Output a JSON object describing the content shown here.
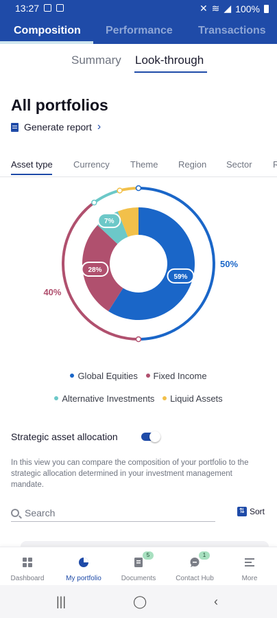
{
  "status_bar": {
    "time": "13:27",
    "battery": "100%"
  },
  "main_tabs": [
    {
      "label": "Composition",
      "active": true
    },
    {
      "label": "Performance",
      "active": false
    },
    {
      "label": "Transactions",
      "active": false
    }
  ],
  "sub_tabs": [
    {
      "label": "Summary",
      "active": false
    },
    {
      "label": "Look-through",
      "active": true
    }
  ],
  "page_title": "All portfolios",
  "generate_report": "Generate report",
  "filter_tabs": [
    {
      "label": "Asset type",
      "active": true
    },
    {
      "label": "Currency"
    },
    {
      "label": "Theme"
    },
    {
      "label": "Region"
    },
    {
      "label": "Sector"
    },
    {
      "label": "R"
    }
  ],
  "chart_data": {
    "type": "pie",
    "series": [
      {
        "name": "Global Equities",
        "value": 59,
        "label": "59%",
        "color": "#1a66c8"
      },
      {
        "name": "Fixed Income",
        "value": 28,
        "label": "28%",
        "color": "#b0506e"
      },
      {
        "name": "Alternative Investments",
        "value": 7,
        "label": "7%",
        "color": "#6cc8c8"
      },
      {
        "name": "Liquid Assets",
        "value": 6,
        "label": "",
        "color": "#f2c04a"
      }
    ],
    "outer_ring": [
      {
        "label": "50%",
        "value": 50,
        "color": "#1a66c8"
      },
      {
        "label": "40%",
        "value": 40,
        "color": "#b0506e"
      },
      {
        "label": "",
        "value": 6,
        "color": "#6cc8c8"
      },
      {
        "label": "",
        "value": 4,
        "color": "#f2c04a"
      }
    ]
  },
  "legend": [
    {
      "label": "Global Equities",
      "color": "#1a66c8"
    },
    {
      "label": "Fixed Income",
      "color": "#b0506e"
    },
    {
      "label": "Alternative Investments",
      "color": "#6cc8c8"
    },
    {
      "label": "Liquid Assets",
      "color": "#f2c04a"
    }
  ],
  "strategic": {
    "label": "Strategic asset allocation",
    "enabled": true,
    "description": "In this view you can compare the composition of your portfolio to the strategic allocation determined in your investment management mandate."
  },
  "search": {
    "placeholder": "Search"
  },
  "sort_label": "Sort",
  "bottom_nav": [
    {
      "label": "Dashboard",
      "icon": "dashboard-icon",
      "active": false
    },
    {
      "label": "My portfolio",
      "icon": "pie-chart-icon",
      "active": true
    },
    {
      "label": "Documents",
      "icon": "document-icon",
      "badge": "5"
    },
    {
      "label": "Contact Hub",
      "icon": "chat-icon",
      "badge": "1"
    },
    {
      "label": "More",
      "icon": "menu-icon"
    }
  ],
  "accent_color": "#1f4ba8"
}
